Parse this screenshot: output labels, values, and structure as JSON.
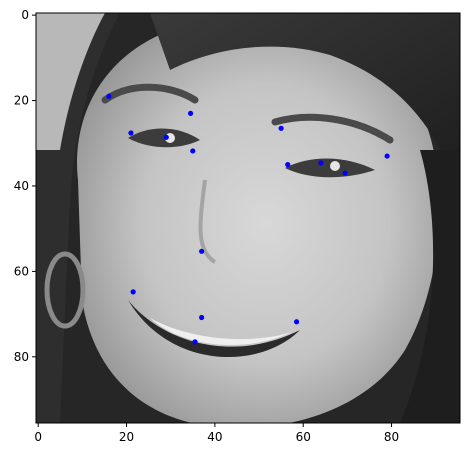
{
  "chart_data": {
    "type": "scatter",
    "title": "",
    "xlabel": "",
    "ylabel": "",
    "xlim": [
      -0.5,
      95.5
    ],
    "ylim": [
      95.5,
      -0.5
    ],
    "y_inverted": true,
    "background": "grayscale image (portrait of a smiling woman, 96x96 pixels)",
    "grid": false,
    "legend": "none",
    "marker_color": "#0000ff",
    "xticks": [
      0,
      20,
      40,
      60,
      80
    ],
    "yticks": [
      0,
      20,
      40,
      60,
      80
    ],
    "series": [
      {
        "points": [
          {
            "x": 16.0,
            "y": 19.0
          },
          {
            "x": 21.0,
            "y": 27.6
          },
          {
            "x": 29.0,
            "y": 28.6
          },
          {
            "x": 34.5,
            "y": 23.0
          },
          {
            "x": 35.0,
            "y": 31.8
          },
          {
            "x": 55.0,
            "y": 26.5
          },
          {
            "x": 56.5,
            "y": 35.0
          },
          {
            "x": 64.0,
            "y": 34.6
          },
          {
            "x": 69.5,
            "y": 37.0
          },
          {
            "x": 79.0,
            "y": 33.0
          },
          {
            "x": 37.0,
            "y": 55.3
          },
          {
            "x": 21.5,
            "y": 64.8
          },
          {
            "x": 37.0,
            "y": 70.8
          },
          {
            "x": 58.5,
            "y": 71.8
          },
          {
            "x": 35.5,
            "y": 76.5
          }
        ]
      }
    ]
  }
}
